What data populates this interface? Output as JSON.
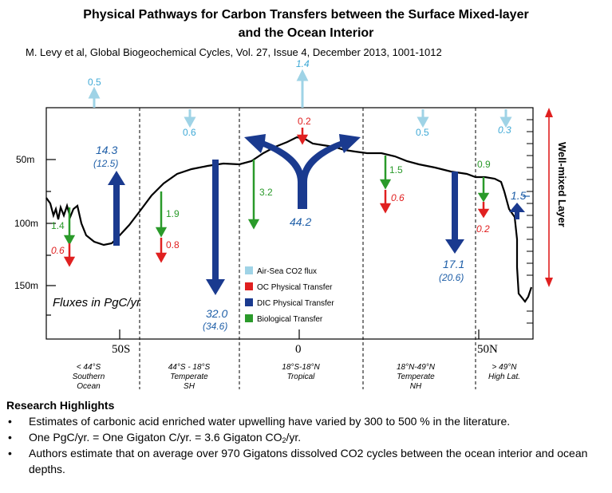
{
  "header": {
    "title_line1": "Physical Pathways for Carbon Transfers between the Surface Mixed-layer",
    "title_line2": "and the Ocean Interior",
    "citation": "M. Levy et al, Global Biogeochemical Cycles, Vol. 27, Issue 4, December 2013, 1001-1012"
  },
  "figure": {
    "depth_labels": [
      "50m",
      "100m",
      "150m"
    ],
    "lat_labels": [
      "50S",
      "0",
      "50N"
    ],
    "units_label": "Fluxes in PgC/yr",
    "side_label": "Well-mixed Layer",
    "regions": [
      {
        "line1": "< 44°S",
        "line2": "Southern",
        "line3": "Ocean"
      },
      {
        "line1": "44°S - 18°S",
        "line2": "Temperate",
        "line3": "SH"
      },
      {
        "line1": "18°S-18°N",
        "line2": "Tropical",
        "line3": ""
      },
      {
        "line1": "18°N-49°N",
        "line2": "Temperate",
        "line3": "NH"
      },
      {
        "line1": "> 49°N",
        "line2": "High Lat.",
        "line3": ""
      }
    ],
    "air_sea_values": [
      "0.5",
      "0.6",
      "1.4",
      "0.5",
      "0.3"
    ],
    "oc_values": [
      "0.6",
      "0.8",
      "0.2",
      "0.6",
      "0.2"
    ],
    "bio_values": [
      "1.4",
      "1.9",
      "3.2",
      "1.5",
      "0.9"
    ],
    "dic": {
      "so_main": "14.3",
      "so_paren": "(12.5)",
      "sh_main": "32.0",
      "sh_paren": "(34.6)",
      "trop": "44.2",
      "nh_main": "17.1",
      "nh_paren": "(20.6)",
      "hl": "1.5"
    },
    "legend": [
      "Air-Sea CO2 flux",
      "OC Physical Transfer",
      "DIC Physical Transfer",
      "Biological Transfer"
    ],
    "colors": {
      "air_sea": "#9fd3e6",
      "oc": "#e02020",
      "dic": "#1a3a8f",
      "bio": "#2a9a2a",
      "label_blue": "#1f5fa8",
      "cyan_text": "#3fa9d6"
    }
  },
  "highlights": {
    "heading": "Research Highlights",
    "b1": "Estimates of carbonic acid enriched water upwelling have varied by 300 to 500 % in the literature.",
    "b2a": "One PgC/yr. = One Gigaton C/yr. = 3.6 Gigaton CO",
    "b2sub": "2",
    "b2b": "/yr.",
    "b3": "Authors estimate that on average over 970 Gigatons dissolved CO2 cycles between the ocean interior and ocean depths."
  }
}
